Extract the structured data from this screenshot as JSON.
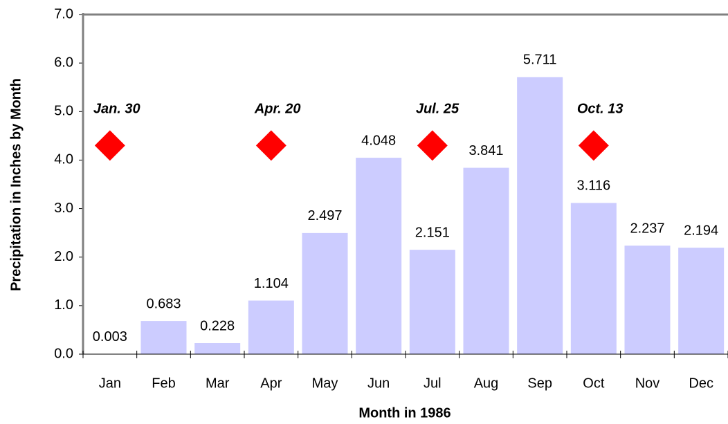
{
  "chart_data": {
    "type": "bar",
    "xlabel": "Month in 1986",
    "ylabel": "Precipitation in Inches by Month",
    "categories": [
      "Jan",
      "Feb",
      "Mar",
      "Apr",
      "May",
      "Jun",
      "Jul",
      "Aug",
      "Sep",
      "Oct",
      "Nov",
      "Dec"
    ],
    "values": [
      0.003,
      0.683,
      0.228,
      1.104,
      2.497,
      4.048,
      2.151,
      3.841,
      5.711,
      3.116,
      2.237,
      2.194
    ],
    "color": "#ccccff",
    "ylim": [
      0,
      7
    ],
    "yticks": [
      {
        "value": 0,
        "label": "0.0"
      },
      {
        "value": 1,
        "label": "1.0"
      },
      {
        "value": 2,
        "label": "2.0"
      },
      {
        "value": 3,
        "label": "3.0"
      },
      {
        "value": 4,
        "label": "4.0"
      },
      {
        "value": 5,
        "label": "5.0"
      },
      {
        "value": 6,
        "label": "6.0"
      },
      {
        "value": 7,
        "label": "7.0"
      }
    ],
    "annotations": [
      {
        "label": "Jan. 30",
        "x": "Jan",
        "y": 4.3,
        "color": "#ff0000"
      },
      {
        "label": "Apr. 20",
        "x": "Apr",
        "y": 4.3,
        "color": "#ff0000"
      },
      {
        "label": "Jul. 25",
        "x": "Jul",
        "y": 4.3,
        "color": "#ff0000"
      },
      {
        "label": "Oct. 13",
        "x": "Oct",
        "y": 4.3,
        "color": "#ff0000"
      }
    ]
  }
}
